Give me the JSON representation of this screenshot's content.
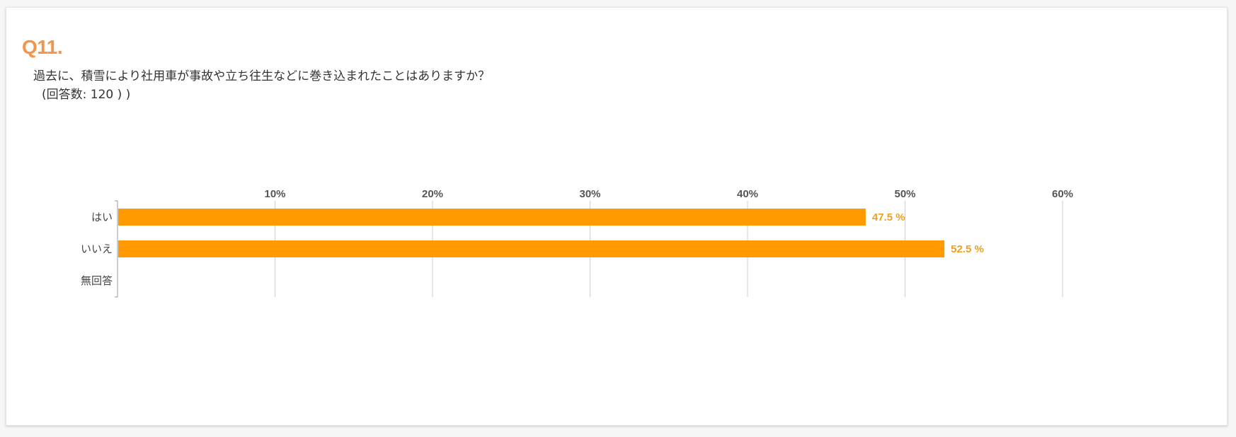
{
  "question": {
    "number": "Q11.",
    "text": "過去に、積雪により社用車が事故や立ち往生などに巻き込まれたことはありますか？",
    "responses": "(回答数: 120 ) )"
  },
  "colors": {
    "accent": "#f0954a",
    "bar": "#ff9a00",
    "value_label": "#f0a020",
    "grid": "#cfcfcf",
    "axis": "#999999"
  },
  "chart_data": {
    "type": "bar",
    "orientation": "horizontal",
    "categories": [
      "はい",
      "いいえ",
      "無回答"
    ],
    "values": [
      47.5,
      52.5,
      null
    ],
    "value_labels": [
      "47.5 %",
      "52.5 %",
      ""
    ],
    "xlim": [
      0,
      60
    ],
    "xticks": [
      10,
      20,
      30,
      40,
      50,
      60
    ],
    "xtick_labels": [
      "10%",
      "20%",
      "30%",
      "40%",
      "50%",
      "60%"
    ],
    "grid": true,
    "tick_position": "top"
  }
}
